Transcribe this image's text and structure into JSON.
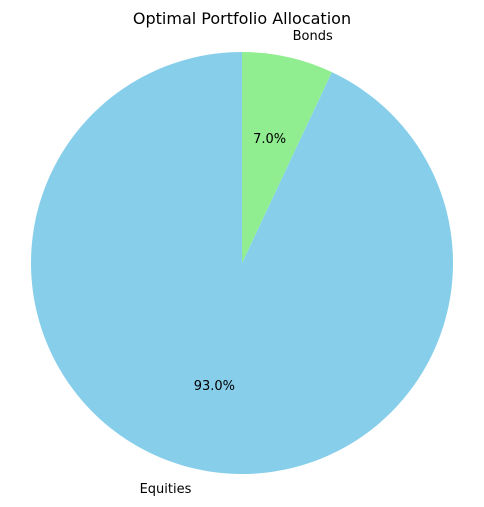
{
  "chart_data": {
    "type": "pie",
    "title": "Optimal Portfolio Allocation",
    "categories": [
      "Equities",
      "Bonds"
    ],
    "values": [
      93.0,
      7.0
    ],
    "labels_pct": [
      "93.0%",
      "7.0%"
    ],
    "colors": [
      "#87ceeb",
      "#90ee90"
    ],
    "start_angle_deg": 90,
    "direction": "counterclockwise"
  }
}
